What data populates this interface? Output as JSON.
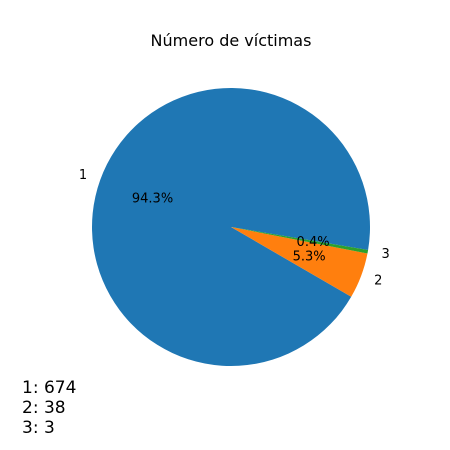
{
  "chart_data": {
    "type": "pie",
    "title": "Número de víctimas",
    "categories": [
      "1",
      "2",
      "3"
    ],
    "values": [
      674,
      38,
      3
    ],
    "percent_labels": [
      "94.3%",
      "5.3%",
      "0.4%"
    ],
    "colors": [
      "#1f77b4",
      "#ff7f0e",
      "#2ca02c"
    ],
    "counts_text": [
      "1: 674",
      "2: 38",
      "3: 3"
    ]
  }
}
